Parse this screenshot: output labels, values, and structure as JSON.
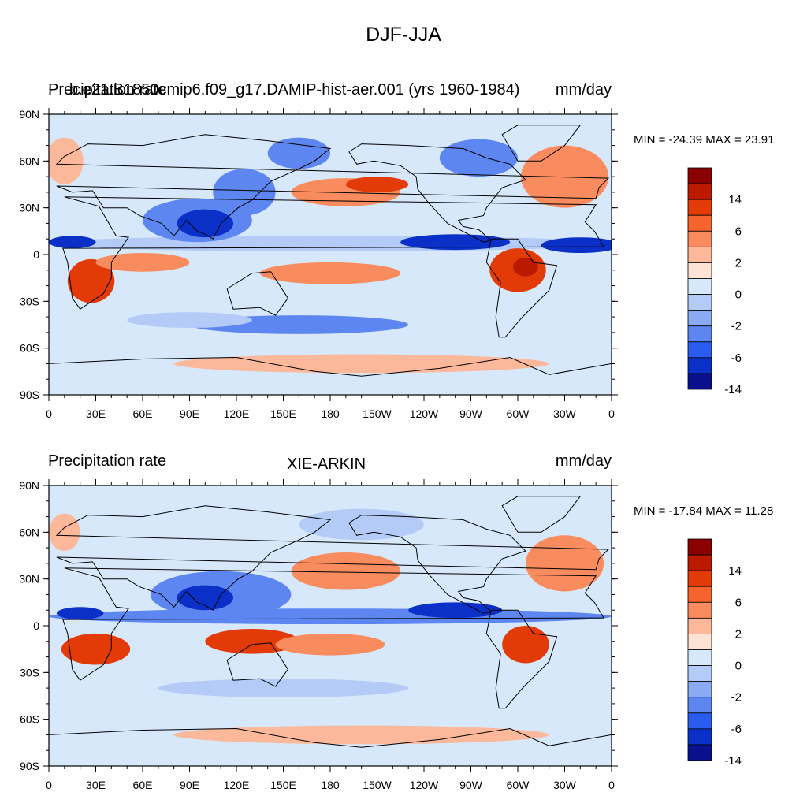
{
  "figure": {
    "title": "DJF-JJA"
  },
  "panels": [
    {
      "left_title": "Precipitation rate",
      "center_title": "b.e21.B1850cmip6.f09_g17.DAMIP-hist-aer.001 (yrs 1960-1984)",
      "right_title": "mm/day",
      "min_max": "MIN = -24.39 MAX =  23.91"
    },
    {
      "left_title": "Precipitation rate",
      "center_title": "XIE-ARKIN",
      "right_title": "mm/day",
      "min_max": "MIN = -17.84 MAX =  11.28"
    }
  ],
  "axes": {
    "lat_ticks": [
      "90N",
      "60N",
      "30N",
      "0",
      "30S",
      "60S",
      "90S"
    ],
    "lon_ticks": [
      "0",
      "30E",
      "60E",
      "90E",
      "120E",
      "150E",
      "180",
      "150W",
      "120W",
      "90W",
      "60W",
      "30W",
      "0"
    ]
  },
  "colorbar": {
    "labels": [
      "14",
      "6",
      "2",
      "0",
      "-2",
      "-6",
      "-14"
    ],
    "colors": [
      "#8b0000",
      "#bb1a00",
      "#e23b08",
      "#f6642e",
      "#f98c5f",
      "#fcb89a",
      "#fde3d3",
      "#d7e8fb",
      "#b4cbf7",
      "#8aabf4",
      "#5d86f1",
      "#2a5cf0",
      "#0a30c8",
      "#0a0f8c"
    ]
  },
  "map_colors": {
    "ocean_base": "#d7e8fb",
    "wet": [
      "#fcb89a",
      "#f98c5f",
      "#e23b08"
    ],
    "dry": [
      "#b4cbf7",
      "#5d86f1",
      "#0a30c8"
    ]
  }
}
